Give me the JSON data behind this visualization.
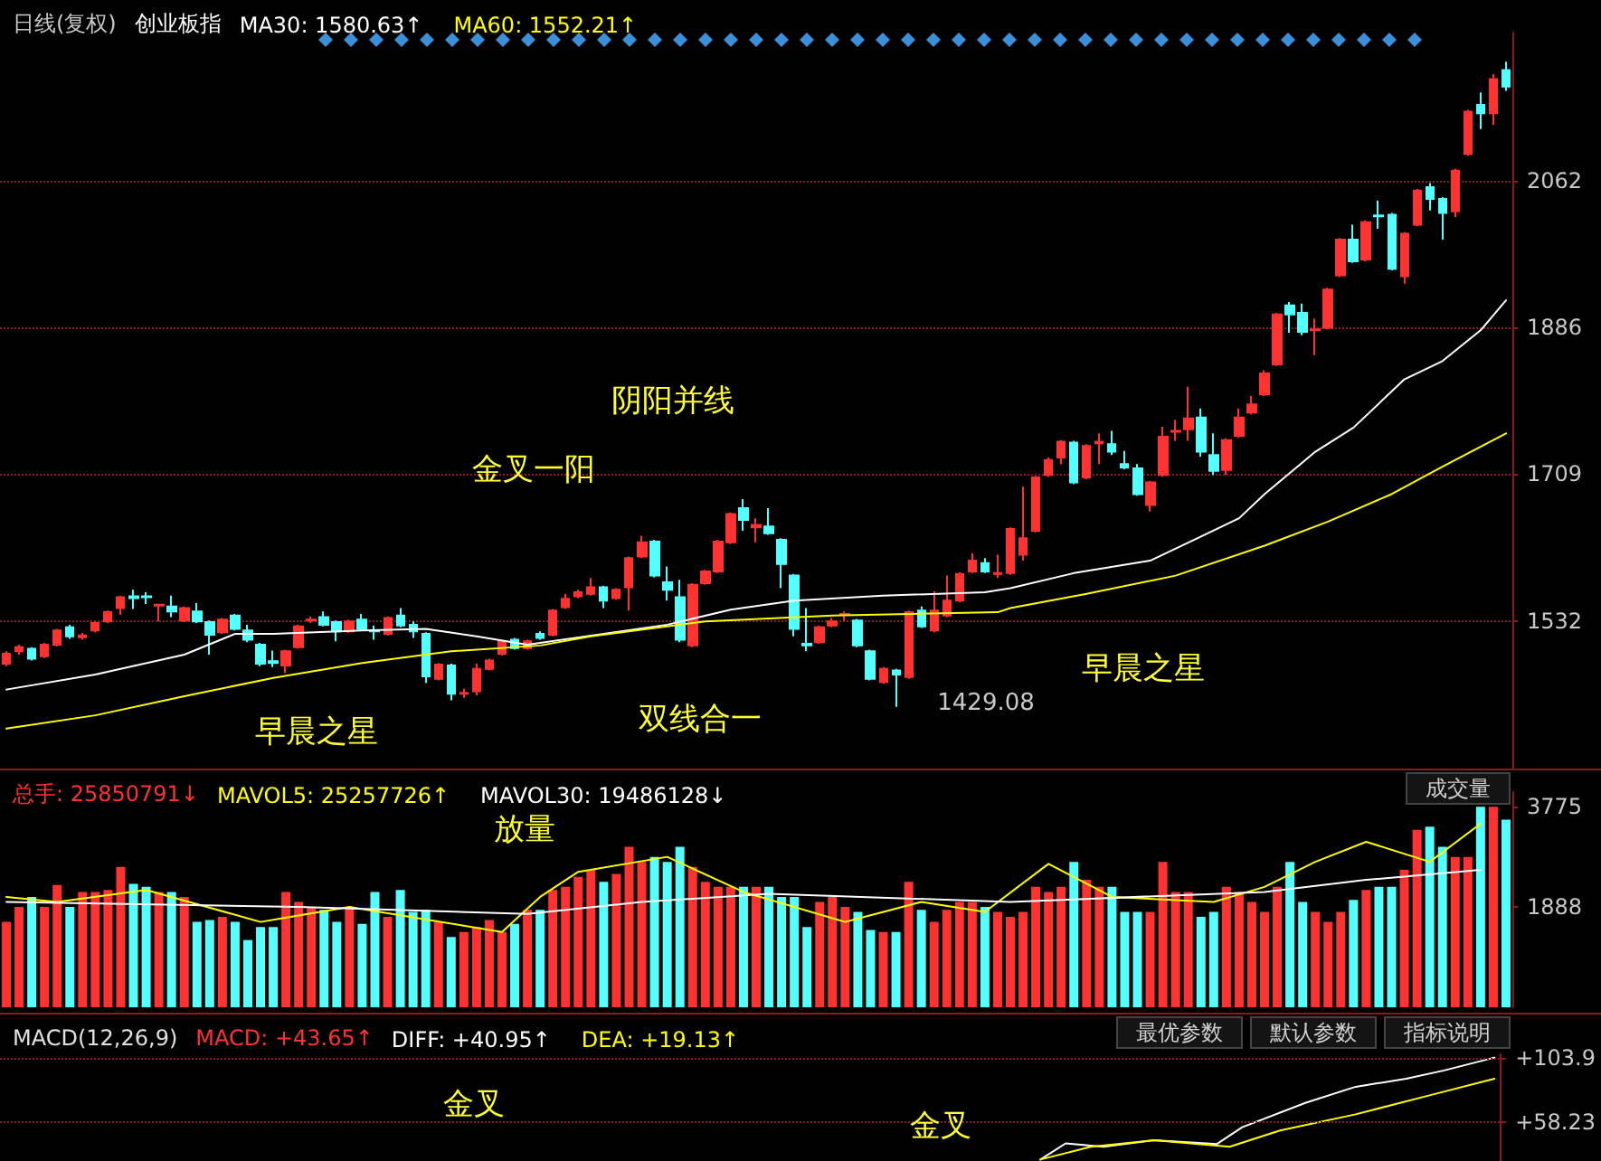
{
  "chart_data": [
    {
      "type": "candlestick",
      "title": "日线(复权)",
      "subtitle": "创业板指",
      "legend": "top left",
      "grid": "y",
      "tick_labels": "y",
      "line_style": "solid",
      "ylim": [
        1355,
        2240
      ],
      "yticks": [
        1532,
        1709,
        1886,
        2062
      ],
      "categories": [
        null,
        null,
        null,
        null,
        null,
        null,
        null,
        null,
        null,
        null,
        null,
        null,
        null,
        null,
        null,
        null,
        null,
        null,
        null,
        null,
        null,
        null,
        null,
        null,
        null,
        null,
        null,
        null,
        null,
        null,
        null,
        null,
        null,
        null,
        null,
        null,
        null,
        null,
        null,
        null,
        null,
        null,
        null,
        null,
        null,
        null,
        null,
        null,
        null,
        null,
        null,
        null,
        null,
        null,
        null,
        null,
        null,
        null,
        null,
        null,
        null,
        null,
        null,
        null,
        null,
        null,
        null,
        null,
        null,
        null,
        null,
        null,
        null,
        null,
        null,
        null,
        null,
        null,
        null,
        null,
        null,
        null,
        null,
        null,
        null,
        null,
        null,
        null,
        null,
        null,
        null,
        null,
        null,
        null,
        null,
        null,
        null,
        null,
        null,
        null,
        null,
        null,
        null,
        null,
        null,
        null,
        null,
        null,
        null,
        null,
        null,
        null,
        null,
        null,
        null,
        null,
        null,
        null,
        null
      ],
      "ohlc": [
        [
          1481,
          1496,
          1478,
          1493
        ],
        [
          1496,
          1504,
          1492,
          1501
        ],
        [
          1499,
          1501,
          1485,
          1487
        ],
        [
          1490,
          1506,
          1488,
          1504
        ],
        [
          1504,
          1523,
          1502,
          1521
        ],
        [
          1525,
          1528,
          1511,
          1514
        ],
        [
          1513,
          1518,
          1510,
          1515
        ],
        [
          1521,
          1532,
          1519,
          1530
        ],
        [
          1532,
          1545,
          1530,
          1543
        ],
        [
          1548,
          1563,
          1540,
          1561
        ],
        [
          1562,
          1570,
          1547,
          1560
        ],
        [
          1562,
          1567,
          1553,
          1561
        ],
        [
          1551,
          1553,
          1532,
          1552
        ],
        [
          1550,
          1563,
          1537,
          1544
        ],
        [
          1533,
          1550,
          1531,
          1548
        ],
        [
          1544,
          1554,
          1530,
          1532
        ],
        [
          1531,
          1533,
          1492,
          1516
        ],
        [
          1519,
          1536,
          1517,
          1534
        ],
        [
          1539,
          1541,
          1521,
          1523
        ],
        [
          1521,
          1528,
          1507,
          1510
        ],
        [
          1504,
          1506,
          1478,
          1481
        ],
        [
          1484,
          1497,
          1477,
          1482
        ],
        [
          1479,
          1498,
          1470,
          1496
        ],
        [
          1501,
          1528,
          1499,
          1526
        ],
        [
          1533,
          1538,
          1530,
          1534
        ],
        [
          1537,
          1544,
          1526,
          1528
        ],
        [
          1531,
          1533,
          1508,
          1520
        ],
        [
          1520,
          1534,
          1518,
          1532
        ],
        [
          1534,
          1541,
          1521,
          1523
        ],
        [
          1521,
          1527,
          1510,
          1520
        ],
        [
          1517,
          1538,
          1515,
          1536
        ],
        [
          1539,
          1548,
          1525,
          1527
        ],
        [
          1528,
          1532,
          1512,
          1520
        ],
        [
          1517,
          1519,
          1458,
          1466
        ],
        [
          1463,
          1482,
          1461,
          1480
        ],
        [
          1479,
          1481,
          1437,
          1445
        ],
        [
          1445,
          1451,
          1440,
          1446
        ],
        [
          1448,
          1481,
          1443,
          1475
        ],
        [
          1475,
          1487,
          1473,
          1485
        ],
        [
          1493,
          1510,
          1491,
          1508
        ],
        [
          1510,
          1512,
          1498,
          1500
        ],
        [
          1500,
          1510,
          1498,
          1508
        ],
        [
          1517,
          1520,
          1510,
          1512
        ],
        [
          1516,
          1547,
          1514,
          1545
        ],
        [
          1549,
          1565,
          1547,
          1559
        ],
        [
          1562,
          1570,
          1560,
          1567
        ],
        [
          1565,
          1584,
          1563,
          1573
        ],
        [
          1573,
          1575,
          1548,
          1557
        ],
        [
          1560,
          1572,
          1558,
          1570
        ],
        [
          1573,
          1610,
          1545,
          1608
        ],
        [
          1610,
          1635,
          1608,
          1627
        ],
        [
          1628,
          1630,
          1585,
          1587
        ],
        [
          1579,
          1598,
          1557,
          1570
        ],
        [
          1561,
          1582,
          1507,
          1510
        ],
        [
          1503,
          1578,
          1501,
          1576
        ],
        [
          1578,
          1594,
          1576,
          1592
        ],
        [
          1592,
          1630,
          1590,
          1628
        ],
        [
          1627,
          1663,
          1625,
          1661
        ],
        [
          1668,
          1679,
          1641,
          1654
        ],
        [
          1645,
          1656,
          1627,
          1648
        ],
        [
          1646,
          1668,
          1636,
          1638
        ],
        [
          1630,
          1632,
          1572,
          1601
        ],
        [
          1587,
          1589,
          1514,
          1523
        ],
        [
          1505,
          1548,
          1496,
          1503
        ],
        [
          1507,
          1527,
          1505,
          1525
        ],
        [
          1527,
          1536,
          1525,
          1532
        ],
        [
          1540,
          1544,
          1533,
          1541
        ],
        [
          1533,
          1535,
          1501,
          1503
        ],
        [
          1496,
          1498,
          1461,
          1463
        ],
        [
          1459,
          1477,
          1457,
          1475
        ],
        [
          1473,
          1475,
          1429.08,
          1468
        ],
        [
          1465,
          1545,
          1463,
          1543
        ],
        [
          1545,
          1550,
          1524,
          1526
        ],
        [
          1521,
          1568,
          1519,
          1545
        ],
        [
          1539,
          1587,
          1537,
          1557
        ],
        [
          1557,
          1591,
          1555,
          1589
        ],
        [
          1592,
          1614,
          1590,
          1605
        ],
        [
          1602,
          1608,
          1590,
          1592
        ],
        [
          1589,
          1612,
          1584,
          1590
        ],
        [
          1590,
          1645,
          1588,
          1643
        ],
        [
          1612,
          1694,
          1605,
          1632
        ],
        [
          1641,
          1707,
          1639,
          1705
        ],
        [
          1708,
          1729,
          1706,
          1726
        ],
        [
          1729,
          1750,
          1721,
          1748
        ],
        [
          1747,
          1749,
          1697,
          1699
        ],
        [
          1705,
          1745,
          1703,
          1743
        ],
        [
          1746,
          1758,
          1721,
          1748
        ],
        [
          1745,
          1761,
          1732,
          1736
        ],
        [
          1721,
          1737,
          1715,
          1717
        ],
        [
          1716,
          1721,
          1683,
          1685
        ],
        [
          1672,
          1701,
          1664,
          1699
        ],
        [
          1708,
          1766,
          1706,
          1754
        ],
        [
          1760,
          1774,
          1749,
          1761
        ],
        [
          1763,
          1814,
          1749,
          1776
        ],
        [
          1777,
          1788,
          1730,
          1736
        ],
        [
          1732,
          1758,
          1708,
          1713
        ],
        [
          1714,
          1752,
          1708,
          1750
        ],
        [
          1755,
          1788,
          1753,
          1777
        ],
        [
          1783,
          1803,
          1781,
          1793
        ],
        [
          1805,
          1834,
          1803,
          1830
        ],
        [
          1841,
          1903,
          1839,
          1901
        ],
        [
          1912,
          1916,
          1879,
          1901
        ],
        [
          1903,
          1914,
          1876,
          1880
        ],
        [
          1882,
          1896,
          1852,
          1883
        ],
        [
          1885,
          1933,
          1883,
          1931
        ],
        [
          1948,
          1993,
          1946,
          1991
        ],
        [
          1991,
          2009,
          1963,
          1965
        ],
        [
          1967,
          2014,
          1965,
          2012
        ],
        [
          2020,
          2038,
          2004,
          2019
        ],
        [
          2021,
          2023,
          1954,
          1956
        ],
        [
          1947,
          2000,
          1938,
          1998
        ],
        [
          2009,
          2052,
          2007,
          2050
        ],
        [
          2054,
          2059,
          2026,
          2040
        ],
        [
          2040,
          2042,
          1991,
          2023
        ],
        [
          2025,
          2076,
          2018,
          2074
        ],
        [
          2094,
          2147,
          2092,
          2145
        ],
        [
          2153,
          2168,
          2124,
          2143
        ],
        [
          2143,
          2190,
          2129,
          2184
        ],
        [
          2195,
          2205,
          2170,
          2175
        ]
      ],
      "colors": [
        "#ff3232",
        "#ff3232",
        "#54ffff",
        "#ff3232",
        "#ff3232",
        "#54ffff",
        "#ff3232",
        "#ff3232",
        "#ff3232",
        "#ff3232",
        "#54ffff",
        "#54ffff",
        "#ff3232",
        "#54ffff",
        "#ff3232",
        "#54ffff",
        "#54ffff",
        "#ff3232",
        "#54ffff",
        "#54ffff",
        "#54ffff",
        "#54ffff",
        "#ff3232",
        "#ff3232",
        "#ff3232",
        "#54ffff",
        "#54ffff",
        "#ff3232",
        "#54ffff",
        "#54ffff",
        "#ff3232",
        "#54ffff",
        "#54ffff",
        "#54ffff",
        "#ff3232",
        "#54ffff",
        "#ff3232",
        "#ff3232",
        "#ff3232",
        "#ff3232",
        "#54ffff",
        "#ff3232",
        "#54ffff",
        "#ff3232",
        "#ff3232",
        "#ff3232",
        "#ff3232",
        "#54ffff",
        "#ff3232",
        "#ff3232",
        "#ff3232",
        "#54ffff",
        "#54ffff",
        "#54ffff",
        "#ff3232",
        "#ff3232",
        "#ff3232",
        "#ff3232",
        "#54ffff",
        "#ff3232",
        "#54ffff",
        "#54ffff",
        "#54ffff",
        "#54ffff",
        "#ff3232",
        "#ff3232",
        "#ff3232",
        "#54ffff",
        "#54ffff",
        "#ff3232",
        "#54ffff",
        "#ff3232",
        "#54ffff",
        "#ff3232",
        "#ff3232",
        "#ff3232",
        "#ff3232",
        "#54ffff",
        "#ff3232",
        "#ff3232",
        "#ff3232",
        "#ff3232",
        "#ff3232",
        "#ff3232",
        "#54ffff",
        "#ff3232",
        "#ff3232",
        "#54ffff",
        "#54ffff",
        "#54ffff",
        "#ff3232",
        "#ff3232",
        "#ff3232",
        "#ff3232",
        "#54ffff",
        "#54ffff",
        "#ff3232",
        "#ff3232",
        "#ff3232",
        "#ff3232",
        "#ff3232",
        "#54ffff",
        "#54ffff",
        "#ff3232",
        "#ff3232",
        "#ff3232",
        "#54ffff",
        "#ff3232",
        "#54ffff",
        "#54ffff",
        "#ff3232",
        "#ff3232",
        "#54ffff",
        "#54ffff",
        "#ff3232",
        "#ff3232",
        "#54ffff",
        "#ff3232",
        "#54ffff"
      ],
      "series": [
        {
          "type": "line",
          "name": "MA30: 1580.63↑",
          "color": "#ffffff",
          "values": [
            1450,
            null,
            null,
            null,
            null,
            null,
            null,
            1468,
            null,
            null,
            null,
            null,
            null,
            null,
            1492,
            null,
            null,
            null,
            1517,
            null,
            null,
            1517,
            null,
            null,
            null,
            null,
            null,
            null,
            1521,
            null,
            null,
            null,
            null,
            1523,
            null,
            null,
            null,
            1514,
            null,
            null,
            null,
            1504,
            null,
            null,
            null,
            null,
            null,
            null,
            null,
            null,
            null,
            null,
            1528,
            null,
            null,
            null,
            null,
            1546,
            null,
            null,
            null,
            null,
            1557,
            null,
            null,
            null,
            null,
            null,
            null,
            1563,
            null,
            null,
            null,
            null,
            null,
            null,
            null,
            1567,
            null,
            1572,
            null,
            null,
            null,
            null,
            1590,
            null,
            null,
            null,
            null,
            null,
            1605,
            null,
            null,
            null,
            1634,
            null,
            null,
            1656,
            null,
            1685,
            null,
            null,
            null,
            1736,
            null,
            null,
            1765,
            null,
            null,
            null,
            1823,
            null,
            null,
            1845,
            null,
            null,
            1882,
            null,
            1918
          ]
        },
        {
          "type": "line",
          "name": "MA60: 1552.21↑",
          "color": "#ffff00",
          "values": [
            1403,
            null,
            null,
            null,
            null,
            null,
            null,
            1419,
            null,
            null,
            null,
            null,
            null,
            null,
            1442,
            null,
            null,
            null,
            null,
            null,
            null,
            1464,
            null,
            null,
            null,
            null,
            null,
            null,
            1482,
            null,
            null,
            null,
            null,
            null,
            null,
            1496,
            null,
            null,
            null,
            null,
            null,
            null,
            1503,
            null,
            null,
            null,
            1514,
            null,
            null,
            null,
            null,
            null,
            null,
            null,
            null,
            1532,
            null,
            null,
            null,
            null,
            null,
            null,
            null,
            null,
            null,
            1539,
            null,
            null,
            null,
            null,
            null,
            null,
            null,
            null,
            null,
            null,
            null,
            null,
            1543,
            1548,
            null,
            null,
            null,
            null,
            null,
            1565,
            null,
            null,
            null,
            null,
            null,
            null,
            1587,
            null,
            null,
            null,
            null,
            null,
            null,
            1623,
            null,
            null,
            null,
            null,
            1652,
            null,
            null,
            null,
            null,
            1685,
            null,
            null,
            null,
            1718,
            null,
            null,
            null,
            null,
            1758
          ]
        }
      ],
      "annotations": [
        "早晨之星",
        "金叉一阳",
        "阴阳并线",
        "双线合一",
        "早晨之星",
        "1429.08"
      ]
    },
    {
      "type": "bar",
      "title": "总手: 25850791↓",
      "legend": "top left",
      "grid": false,
      "tick_labels": "y",
      "line_style": "solid",
      "ylim": [
        0,
        4050
      ],
      "yticks": [
        1888,
        3775
      ],
      "categories": [
        null,
        null,
        null,
        null,
        null,
        null,
        null,
        null,
        null,
        null,
        null,
        null,
        null,
        null,
        null,
        null,
        null,
        null,
        null,
        null,
        null,
        null,
        null,
        null,
        null,
        null,
        null,
        null,
        null,
        null,
        null,
        null,
        null,
        null,
        null,
        null,
        null,
        null,
        null,
        null,
        null,
        null,
        null,
        null,
        null,
        null,
        null,
        null,
        null,
        null,
        null,
        null,
        null,
        null,
        null,
        null,
        null,
        null,
        null,
        null,
        null,
        null,
        null,
        null,
        null,
        null,
        null,
        null,
        null,
        null,
        null,
        null,
        null,
        null,
        null,
        null,
        null,
        null,
        null,
        null,
        null,
        null,
        null,
        null,
        null,
        null,
        null,
        null,
        null,
        null,
        null,
        null,
        null,
        null,
        null,
        null,
        null,
        null,
        null,
        null,
        null,
        null,
        null,
        null,
        null,
        null,
        null,
        null,
        null,
        null,
        null,
        null,
        null,
        null,
        null,
        null,
        null,
        null,
        null
      ],
      "values": [
        1606,
        1888,
        2077,
        1888,
        2303,
        1888,
        2171,
        2171,
        2209,
        2643,
        2322,
        2266,
        2171,
        2171,
        2077,
        1606,
        1643,
        1700,
        1606,
        1266,
        1511,
        1511,
        2171,
        1983,
        1888,
        1832,
        1606,
        1888,
        1568,
        2171,
        1700,
        2209,
        1794,
        1832,
        1606,
        1323,
        1417,
        1511,
        1643,
        1417,
        1568,
        1832,
        1832,
        2209,
        2266,
        2454,
        2586,
        2360,
        2511,
        3020,
        2737,
        2831,
        2737,
        3020,
        2643,
        2360,
        2266,
        2266,
        2266,
        2266,
        2266,
        2077,
        2077,
        1511,
        1983,
        2077,
        1888,
        1794,
        1455,
        1417,
        1417,
        2360,
        1832,
        1606,
        1832,
        1983,
        1983,
        1888,
        1794,
        1700,
        1794,
        2266,
        2171,
        2266,
        2737,
        2398,
        2266,
        2266,
        1794,
        1794,
        1794,
        2737,
        2171,
        2171,
        1700,
        1794,
        2266,
        2171,
        1983,
        1794,
        2266,
        2737,
        1983,
        1794,
        1606,
        1794,
        2020,
        2209,
        2266,
        2266,
        2586,
        3340,
        3397,
        3020,
        2831,
        2831,
        3774,
        3774,
        3529
      ],
      "colors": [
        "#ff3232",
        "#ff3232",
        "#54ffff",
        "#ff3232",
        "#ff3232",
        "#54ffff",
        "#ff3232",
        "#ff3232",
        "#ff3232",
        "#ff3232",
        "#54ffff",
        "#54ffff",
        "#ff3232",
        "#54ffff",
        "#ff3232",
        "#54ffff",
        "#54ffff",
        "#ff3232",
        "#54ffff",
        "#54ffff",
        "#54ffff",
        "#54ffff",
        "#ff3232",
        "#ff3232",
        "#ff3232",
        "#54ffff",
        "#54ffff",
        "#ff3232",
        "#54ffff",
        "#54ffff",
        "#ff3232",
        "#54ffff",
        "#54ffff",
        "#54ffff",
        "#ff3232",
        "#54ffff",
        "#ff3232",
        "#ff3232",
        "#ff3232",
        "#ff3232",
        "#54ffff",
        "#ff3232",
        "#54ffff",
        "#ff3232",
        "#ff3232",
        "#ff3232",
        "#ff3232",
        "#54ffff",
        "#ff3232",
        "#ff3232",
        "#ff3232",
        "#54ffff",
        "#54ffff",
        "#54ffff",
        "#ff3232",
        "#ff3232",
        "#ff3232",
        "#ff3232",
        "#54ffff",
        "#ff3232",
        "#54ffff",
        "#54ffff",
        "#54ffff",
        "#54ffff",
        "#ff3232",
        "#ff3232",
        "#ff3232",
        "#54ffff",
        "#54ffff",
        "#ff3232",
        "#54ffff",
        "#ff3232",
        "#54ffff",
        "#ff3232",
        "#ff3232",
        "#ff3232",
        "#ff3232",
        "#54ffff",
        "#ff3232",
        "#ff3232",
        "#ff3232",
        "#ff3232",
        "#ff3232",
        "#ff3232",
        "#54ffff",
        "#ff3232",
        "#ff3232",
        "#54ffff",
        "#54ffff",
        "#54ffff",
        "#ff3232",
        "#ff3232",
        "#ff3232",
        "#ff3232",
        "#54ffff",
        "#54ffff",
        "#ff3232",
        "#ff3232",
        "#ff3232",
        "#ff3232",
        "#ff3232",
        "#54ffff",
        "#54ffff",
        "#ff3232",
        "#ff3232",
        "#ff3232",
        "#54ffff",
        "#ff3232",
        "#54ffff",
        "#54ffff",
        "#ff3232",
        "#ff3232",
        "#54ffff",
        "#54ffff",
        "#ff3232",
        "#ff3232",
        "#54ffff",
        "#ff3232",
        "#54ffff"
      ],
      "series": [
        {
          "type": "line",
          "name": "MAVOL5: 25257726↑",
          "color": "#ffff00",
          "values": [
            2077,
            null,
            null,
            null,
            1983,
            null,
            null,
            null,
            null,
            null,
            null,
            2209,
            null,
            null,
            null,
            null,
            null,
            null,
            null,
            null,
            1606,
            null,
            null,
            null,
            null,
            null,
            null,
            1888,
            null,
            null,
            null,
            null,
            null,
            null,
            null,
            null,
            null,
            null,
            null,
            1417,
            null,
            null,
            2077,
            null,
            null,
            2549,
            null,
            null,
            null,
            null,
            null,
            null,
            2831,
            null,
            null,
            null,
            null,
            null,
            2171,
            null,
            null,
            null,
            null,
            null,
            null,
            null,
            1606,
            null,
            null,
            null,
            null,
            null,
            1983,
            null,
            null,
            null,
            null,
            1794,
            null,
            null,
            null,
            null,
            2700,
            null,
            null,
            null,
            null,
            2077,
            null,
            null,
            null,
            null,
            null,
            null,
            null,
            1983,
            null,
            null,
            null,
            2266,
            null,
            null,
            null,
            2737,
            null,
            null,
            null,
            3114,
            null,
            null,
            null,
            null,
            2737,
            null,
            null,
            null,
            3454,
            null,
            null
          ]
        },
        {
          "type": "line",
          "name": "MAVOL30: 19486128↓",
          "color": "#ffffff",
          "values": [
            1983,
            null,
            null,
            null,
            null,
            null,
            null,
            null,
            null,
            null,
            null,
            null,
            null,
            null,
            null,
            null,
            null,
            null,
            null,
            null,
            null,
            null,
            null,
            1888,
            null,
            null,
            null,
            null,
            null,
            null,
            null,
            null,
            null,
            null,
            null,
            null,
            null,
            null,
            null,
            null,
            null,
            1756,
            null,
            null,
            null,
            null,
            null,
            null,
            null,
            null,
            1983,
            null,
            null,
            null,
            null,
            null,
            null,
            null,
            null,
            null,
            2134,
            null,
            null,
            null,
            null,
            null,
            null,
            null,
            null,
            null,
            null,
            null,
            null,
            null,
            null,
            null,
            null,
            null,
            null,
            1983,
            null,
            null,
            null,
            null,
            null,
            null,
            null,
            null,
            null,
            null,
            null,
            null,
            null,
            null,
            null,
            null,
            null,
            null,
            null,
            2171,
            null,
            null,
            null,
            null,
            null,
            null,
            null,
            2398,
            null,
            null,
            null,
            null,
            null,
            null,
            null,
            null,
            2586,
            null,
            null
          ]
        }
      ],
      "annotations": [
        "放量",
        "成交量"
      ]
    },
    {
      "type": "line",
      "title": "MACD(12,26,9)",
      "subtitle": "MACD: +43.65↑",
      "legend": "top left",
      "grid": false,
      "ref_lines": [
        {
          "axis": "y",
          "value": 103.9,
          "color": "#8b1a1a",
          "line_style": "dotted"
        },
        {
          "axis": "y",
          "value": 58.23,
          "color": "#8b1a1a",
          "line_style": "dotted"
        }
      ],
      "tick_labels": "y",
      "line_style": "solid",
      "ylim": [
        29.7,
        106.2
      ],
      "yticks": [
        {
          "value": 103.9,
          "label": "+103.9"
        },
        {
          "value": 58.23,
          "label": "+58.23"
        }
      ],
      "categories": [
        null,
        null,
        null,
        null,
        null,
        null,
        null,
        null,
        null,
        null,
        null,
        null,
        null,
        null,
        null,
        null,
        null,
        null,
        null,
        null,
        null,
        null,
        null,
        null,
        null,
        null,
        null,
        null,
        null,
        null,
        null,
        null,
        null,
        null,
        null,
        null,
        null,
        null,
        null,
        null,
        null,
        null,
        null,
        null,
        null,
        null,
        null,
        null,
        null,
        null,
        null,
        null,
        null,
        null,
        null,
        null,
        null,
        null,
        null,
        null,
        null,
        null,
        null,
        null,
        null,
        null,
        null,
        null,
        null,
        null,
        null,
        null,
        null,
        null,
        null,
        null,
        null,
        null,
        null,
        null,
        null,
        null,
        null,
        null,
        null,
        null,
        null,
        null,
        null,
        null,
        null,
        null,
        null,
        null,
        null,
        null,
        null,
        null,
        null,
        null,
        null,
        null,
        null,
        null,
        null,
        null,
        null,
        null,
        null,
        null,
        null,
        null,
        null,
        null,
        null,
        null,
        null,
        null,
        null
      ],
      "series": [
        {
          "name": "DIFF: +40.95↑",
          "color": "#ffffff",
          "values": [
            null,
            null,
            null,
            null,
            null,
            null,
            null,
            null,
            null,
            null,
            null,
            null,
            null,
            null,
            null,
            null,
            null,
            null,
            null,
            null,
            null,
            null,
            null,
            null,
            null,
            null,
            null,
            null,
            null,
            null,
            null,
            null,
            null,
            null,
            null,
            null,
            null,
            null,
            null,
            null,
            null,
            null,
            null,
            null,
            null,
            null,
            null,
            null,
            null,
            null,
            null,
            null,
            null,
            null,
            null,
            null,
            null,
            null,
            null,
            null,
            null,
            null,
            null,
            null,
            null,
            null,
            null,
            null,
            null,
            null,
            null,
            null,
            null,
            null,
            null,
            null,
            null,
            null,
            null,
            null,
            null,
            null,
            32,
            null,
            43.4,
            null,
            null,
            41,
            null,
            null,
            null,
            45.6,
            null,
            null,
            null,
            null,
            43,
            null,
            54.8,
            null,
            null,
            null,
            null,
            71.9,
            null,
            null,
            null,
            83.3,
            null,
            null,
            null,
            89,
            null,
            null,
            94.8,
            null,
            null,
            null,
            103.9
          ]
        },
        {
          "name": "DEA: +19.13↑",
          "color": "#ffff00",
          "values": [
            null,
            null,
            null,
            null,
            null,
            null,
            null,
            null,
            null,
            null,
            null,
            null,
            null,
            null,
            null,
            null,
            null,
            null,
            null,
            null,
            null,
            null,
            null,
            null,
            null,
            null,
            null,
            null,
            null,
            null,
            null,
            null,
            null,
            null,
            null,
            null,
            null,
            null,
            null,
            null,
            null,
            null,
            null,
            null,
            null,
            null,
            null,
            null,
            null,
            null,
            null,
            null,
            null,
            null,
            null,
            null,
            null,
            null,
            null,
            null,
            null,
            null,
            null,
            null,
            null,
            null,
            null,
            null,
            null,
            null,
            null,
            null,
            null,
            null,
            null,
            null,
            null,
            null,
            null,
            null,
            null,
            null,
            32,
            null,
            null,
            null,
            41,
            null,
            null,
            null,
            null,
            45.6,
            null,
            null,
            null,
            null,
            null,
            41,
            null,
            null,
            null,
            52.5,
            null,
            null,
            null,
            null,
            null,
            63.9,
            null,
            null,
            null,
            null,
            null,
            77.6,
            null,
            null,
            null,
            null,
            89
          ]
        }
      ],
      "annotations": [
        "金叉",
        "金叉",
        "最优参数",
        "默认参数",
        "指标说明"
      ]
    }
  ]
}
